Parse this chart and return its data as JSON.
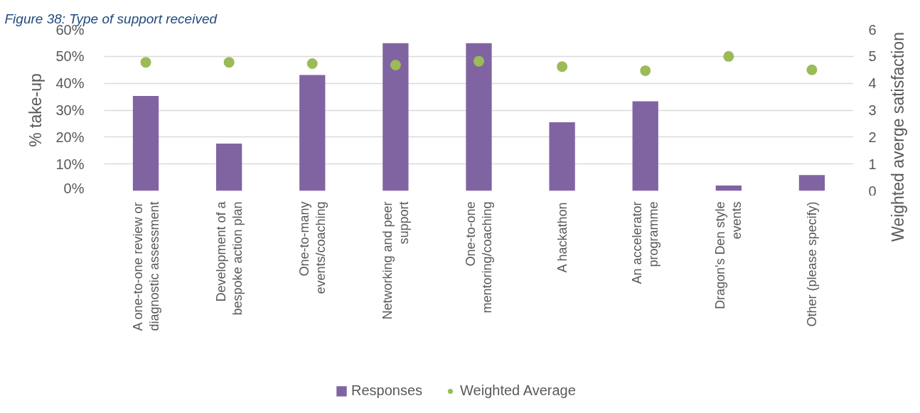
{
  "chart_data": {
    "type": "bar",
    "title": "Figure 38: Type of support received",
    "categories": [
      "A one-to-one review or diagnostic assessment",
      "Development of a bespoke action plan",
      "One-to-many events/coaching",
      "Networking and peer support",
      "One-to-one mentoring/coaching",
      "A hackathon",
      "An accelerator programme",
      "Dragon's Den style events",
      "Other (please specify)"
    ],
    "series": [
      {
        "name": "Responses",
        "color": "#8064a2",
        "values": [
          35.3,
          17.6,
          43.1,
          54.9,
          54.9,
          25.5,
          33.3,
          2.0,
          5.9
        ]
      },
      {
        "name": "Weighted Average",
        "type": "scatter",
        "axis": "y2",
        "color": "#9bbb59",
        "values": [
          4.78,
          4.78,
          4.73,
          4.68,
          4.82,
          4.62,
          4.47,
          5.0,
          4.5
        ]
      }
    ],
    "ylabel": "% take-up",
    "y2label": "Weighted averge satisfaction",
    "ylim": [
      0,
      60
    ],
    "yticks": [
      {
        "value": 0,
        "label": "0%"
      },
      {
        "value": 10,
        "label": "10%"
      },
      {
        "value": 20,
        "label": "20%"
      },
      {
        "value": 30,
        "label": "30%"
      },
      {
        "value": 40,
        "label": "40%"
      },
      {
        "value": 50,
        "label": "50%"
      },
      {
        "value": 60,
        "label": "60%"
      }
    ],
    "y2lim": [
      0,
      6
    ],
    "y2ticks": [
      0,
      1,
      2,
      3,
      4,
      5,
      6
    ],
    "grid": "y",
    "legend": "bottom",
    "marker": "circle"
  }
}
